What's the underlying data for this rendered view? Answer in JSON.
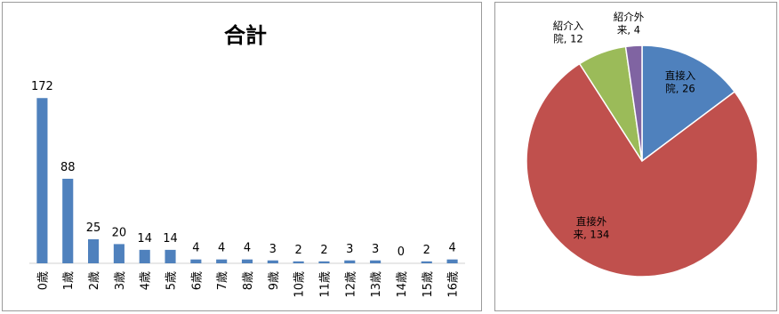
{
  "chart_data": [
    {
      "type": "bar",
      "title": "合計",
      "categories": [
        "0歳",
        "1歳",
        "2歳",
        "3歳",
        "4歳",
        "5歳",
        "6歳",
        "7歳",
        "8歳",
        "9歳",
        "10歳",
        "11歳",
        "12歳",
        "13歳",
        "14歳",
        "15歳",
        "16歳"
      ],
      "values": [
        172,
        88,
        25,
        20,
        14,
        14,
        4,
        4,
        4,
        3,
        2,
        2,
        3,
        3,
        0,
        2,
        4
      ],
      "ylim": [
        0,
        200
      ],
      "grid": false,
      "legend": "none",
      "bar_color": "#4f81bd",
      "xlabel": "",
      "ylabel": ""
    },
    {
      "type": "pie",
      "slices": [
        {
          "label": "直接入院",
          "value": 26,
          "display_label": "直接入\n院, 26",
          "color": "#4f81bd"
        },
        {
          "label": "直接外来",
          "value": 134,
          "display_label": "直接外\n来, 134",
          "color": "#c0504d"
        },
        {
          "label": "紹介入院",
          "value": 12,
          "display_label": "紹介入\n院, 12",
          "color": "#9bbb59"
        },
        {
          "label": "紹介外来",
          "value": 4,
          "display_label": "紹介外\n来, 4",
          "color": "#8064a2"
        }
      ],
      "start": "12 o'clock, clockwise",
      "legend": "none"
    }
  ]
}
